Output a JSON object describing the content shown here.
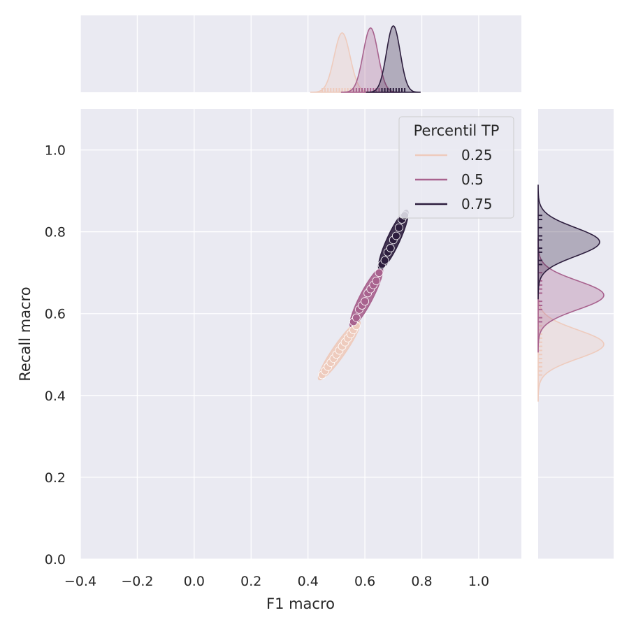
{
  "chart_data": {
    "type": "scatter",
    "subtype": "jointplot-kde-with-marginal-kde-and-rug",
    "xlabel": "F1 macro",
    "ylabel": "Recall macro",
    "xlim": [
      -0.4,
      1.15
    ],
    "ylim": [
      0.0,
      1.1
    ],
    "x_ticks": [
      "−0.4",
      "−0.2",
      "0.0",
      "0.2",
      "0.4",
      "0.6",
      "0.8",
      "1.0"
    ],
    "x_tick_values": [
      -0.4,
      -0.2,
      0.0,
      0.2,
      0.4,
      0.6,
      0.8,
      1.0
    ],
    "y_ticks": [
      "0.0",
      "0.2",
      "0.4",
      "0.6",
      "0.8",
      "1.0"
    ],
    "y_tick_values": [
      0.0,
      0.2,
      0.4,
      0.6,
      0.8,
      1.0
    ],
    "grid": true,
    "legend": {
      "title": "Percentil TP",
      "placement": "top-right",
      "entries": [
        "0.25",
        "0.5",
        "0.75"
      ]
    },
    "colors": {
      "background": "#eaeaf2",
      "grid": "#ffffff",
      "series": [
        "#eecbbd",
        "#a8628e",
        "#2d1e3e"
      ]
    },
    "series": [
      {
        "name": "0.25",
        "color": "#eecbbd",
        "x": [
          0.45,
          0.46,
          0.47,
          0.48,
          0.49,
          0.5,
          0.51,
          0.52,
          0.53,
          0.54,
          0.55,
          0.56,
          0.57
        ],
        "y": [
          0.45,
          0.46,
          0.47,
          0.48,
          0.49,
          0.5,
          0.51,
          0.52,
          0.53,
          0.54,
          0.55,
          0.56,
          0.57
        ],
        "x_peak": 0.52,
        "y_peak": 0.525
      },
      {
        "name": "0.5",
        "color": "#a8628e",
        "x": [
          0.56,
          0.57,
          0.58,
          0.59,
          0.6,
          0.61,
          0.62,
          0.63,
          0.64,
          0.65
        ],
        "y": [
          0.58,
          0.59,
          0.61,
          0.62,
          0.63,
          0.65,
          0.66,
          0.67,
          0.68,
          0.7
        ],
        "x_peak": 0.62,
        "y_peak": 0.645
      },
      {
        "name": "0.75",
        "color": "#2d1e3e",
        "x": [
          0.66,
          0.67,
          0.68,
          0.69,
          0.7,
          0.71,
          0.72,
          0.73,
          0.74
        ],
        "y": [
          0.72,
          0.73,
          0.75,
          0.76,
          0.78,
          0.79,
          0.81,
          0.83,
          0.84
        ],
        "x_peak": 0.7,
        "y_peak": 0.775
      }
    ]
  }
}
